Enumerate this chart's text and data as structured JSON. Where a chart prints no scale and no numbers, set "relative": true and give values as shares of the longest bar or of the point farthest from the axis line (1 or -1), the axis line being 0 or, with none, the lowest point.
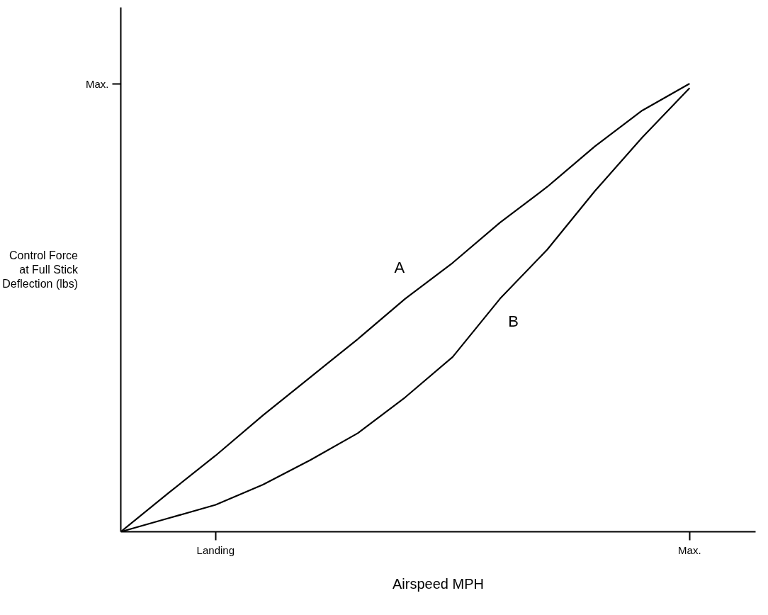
{
  "chart_data": {
    "type": "line",
    "relative": true,
    "xlabel": "Airspeed MPH",
    "ylabel": "Control Force\nat Full Stick\nDeflection (lbs)",
    "categories": [
      null,
      null,
      "Landing",
      null,
      null,
      null,
      null,
      null,
      null,
      null,
      null,
      null,
      "Max."
    ],
    "series": [
      {
        "color": "#000000",
        "values": [
          0,
          0.086,
          0.17,
          0.26,
          0.345,
          0.43,
          0.52,
          0.6,
          0.69,
          0.77,
          0.86,
          0.94,
          1.0
        ]
      },
      {
        "color": "#000000",
        "values": [
          0,
          0.03,
          0.06,
          0.105,
          0.16,
          0.22,
          0.3,
          0.39,
          0.52,
          0.63,
          0.76,
          0.88,
          0.99
        ]
      }
    ],
    "annotations": [
      "A",
      "B",
      "Max."
    ],
    "grid": false,
    "marker": "none",
    "line_style": "solid"
  }
}
